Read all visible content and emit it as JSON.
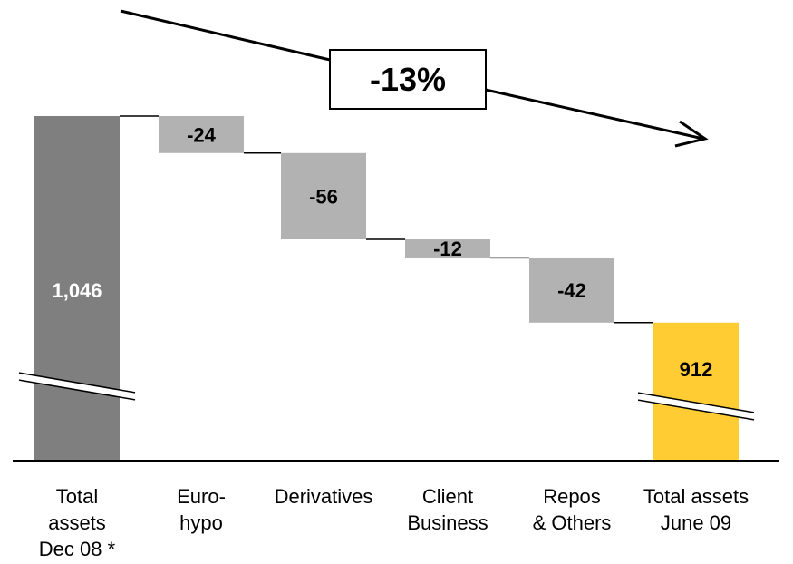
{
  "chart_data": {
    "type": "waterfall",
    "categories": [
      [
        "Total",
        "assets",
        "Dec 08 *"
      ],
      [
        "Euro-",
        "hypo"
      ],
      [
        "Derivatives"
      ],
      [
        "Client",
        "Business"
      ],
      [
        "Repos",
        "& Others"
      ],
      [
        "Total assets",
        "June 09"
      ]
    ],
    "values": [
      1046,
      -24,
      -56,
      -12,
      -42,
      912
    ],
    "data_labels": [
      "1,046",
      "-24",
      "-56",
      "-12",
      "-42",
      "912"
    ],
    "change_label": "-13%",
    "axis_break": true,
    "visible_range": [
      860,
      1046
    ],
    "colors": {
      "start_bar": "#7f7f7f",
      "step_bar": "#b2b2b2",
      "end_bar": "#ffcc33",
      "start_label": "#ffffff",
      "step_label": "#000000",
      "end_label": "#000000"
    }
  }
}
